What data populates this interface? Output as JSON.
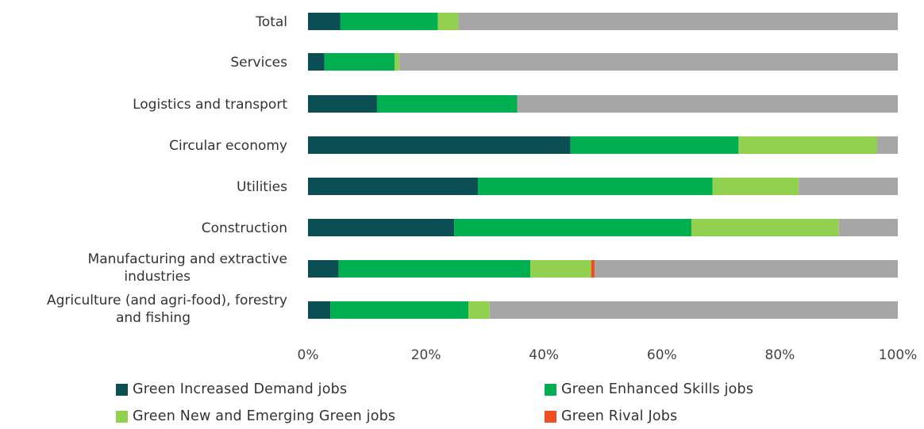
{
  "chart_data": {
    "type": "bar",
    "orientation": "horizontal",
    "stacked": true,
    "percent": true,
    "categories": [
      "Total",
      "Services",
      "Logistics and transport",
      "Circular economy",
      "Utilities",
      "Construction",
      "Manufacturing and extractive industries",
      "Agriculture (and agri-food), forestry and fishing"
    ],
    "category_label_lines": [
      [
        "Total"
      ],
      [
        "Services"
      ],
      [
        "Logistics and transport"
      ],
      [
        "Circular economy"
      ],
      [
        "Utilities"
      ],
      [
        "Construction"
      ],
      [
        "Manufacturing and extractive",
        "industries"
      ],
      [
        "Agriculture (and agri-food), forestry",
        "and fishing"
      ]
    ],
    "series": [
      {
        "name": "Green Increased Demand jobs",
        "color": "#0b4f55",
        "values": [
          5.5,
          2.8,
          11.7,
          44.5,
          28.8,
          24.8,
          5.2,
          3.8
        ]
      },
      {
        "name": "Green Enhanced Skills jobs",
        "color": "#00b050",
        "values": [
          16.5,
          11.9,
          23.8,
          28.5,
          39.8,
          40.2,
          32.5,
          23.4
        ]
      },
      {
        "name": "Green New and Emerging Green jobs",
        "color": "#92d050",
        "values": [
          3.5,
          0.8,
          0,
          23.5,
          14.6,
          25.0,
          10.3,
          3.6
        ]
      },
      {
        "name": "Green Rival Jobs",
        "color": "#f04e23",
        "values": [
          0,
          0,
          0,
          0,
          0,
          0,
          0.6,
          0
        ]
      },
      {
        "name": "",
        "color": "#a6a6a6",
        "values": [
          74.5,
          84.5,
          64.5,
          3.5,
          16.8,
          10.0,
          51.4,
          69.2
        ]
      }
    ],
    "xlim": [
      0,
      100
    ],
    "x_ticks": [
      "0%",
      "20%",
      "40%",
      "60%",
      "80%",
      "100%"
    ],
    "grid": false,
    "legend_position": "bottom",
    "legend_order": [
      0,
      1,
      2,
      3
    ],
    "title": "",
    "xlabel": "",
    "ylabel": ""
  }
}
